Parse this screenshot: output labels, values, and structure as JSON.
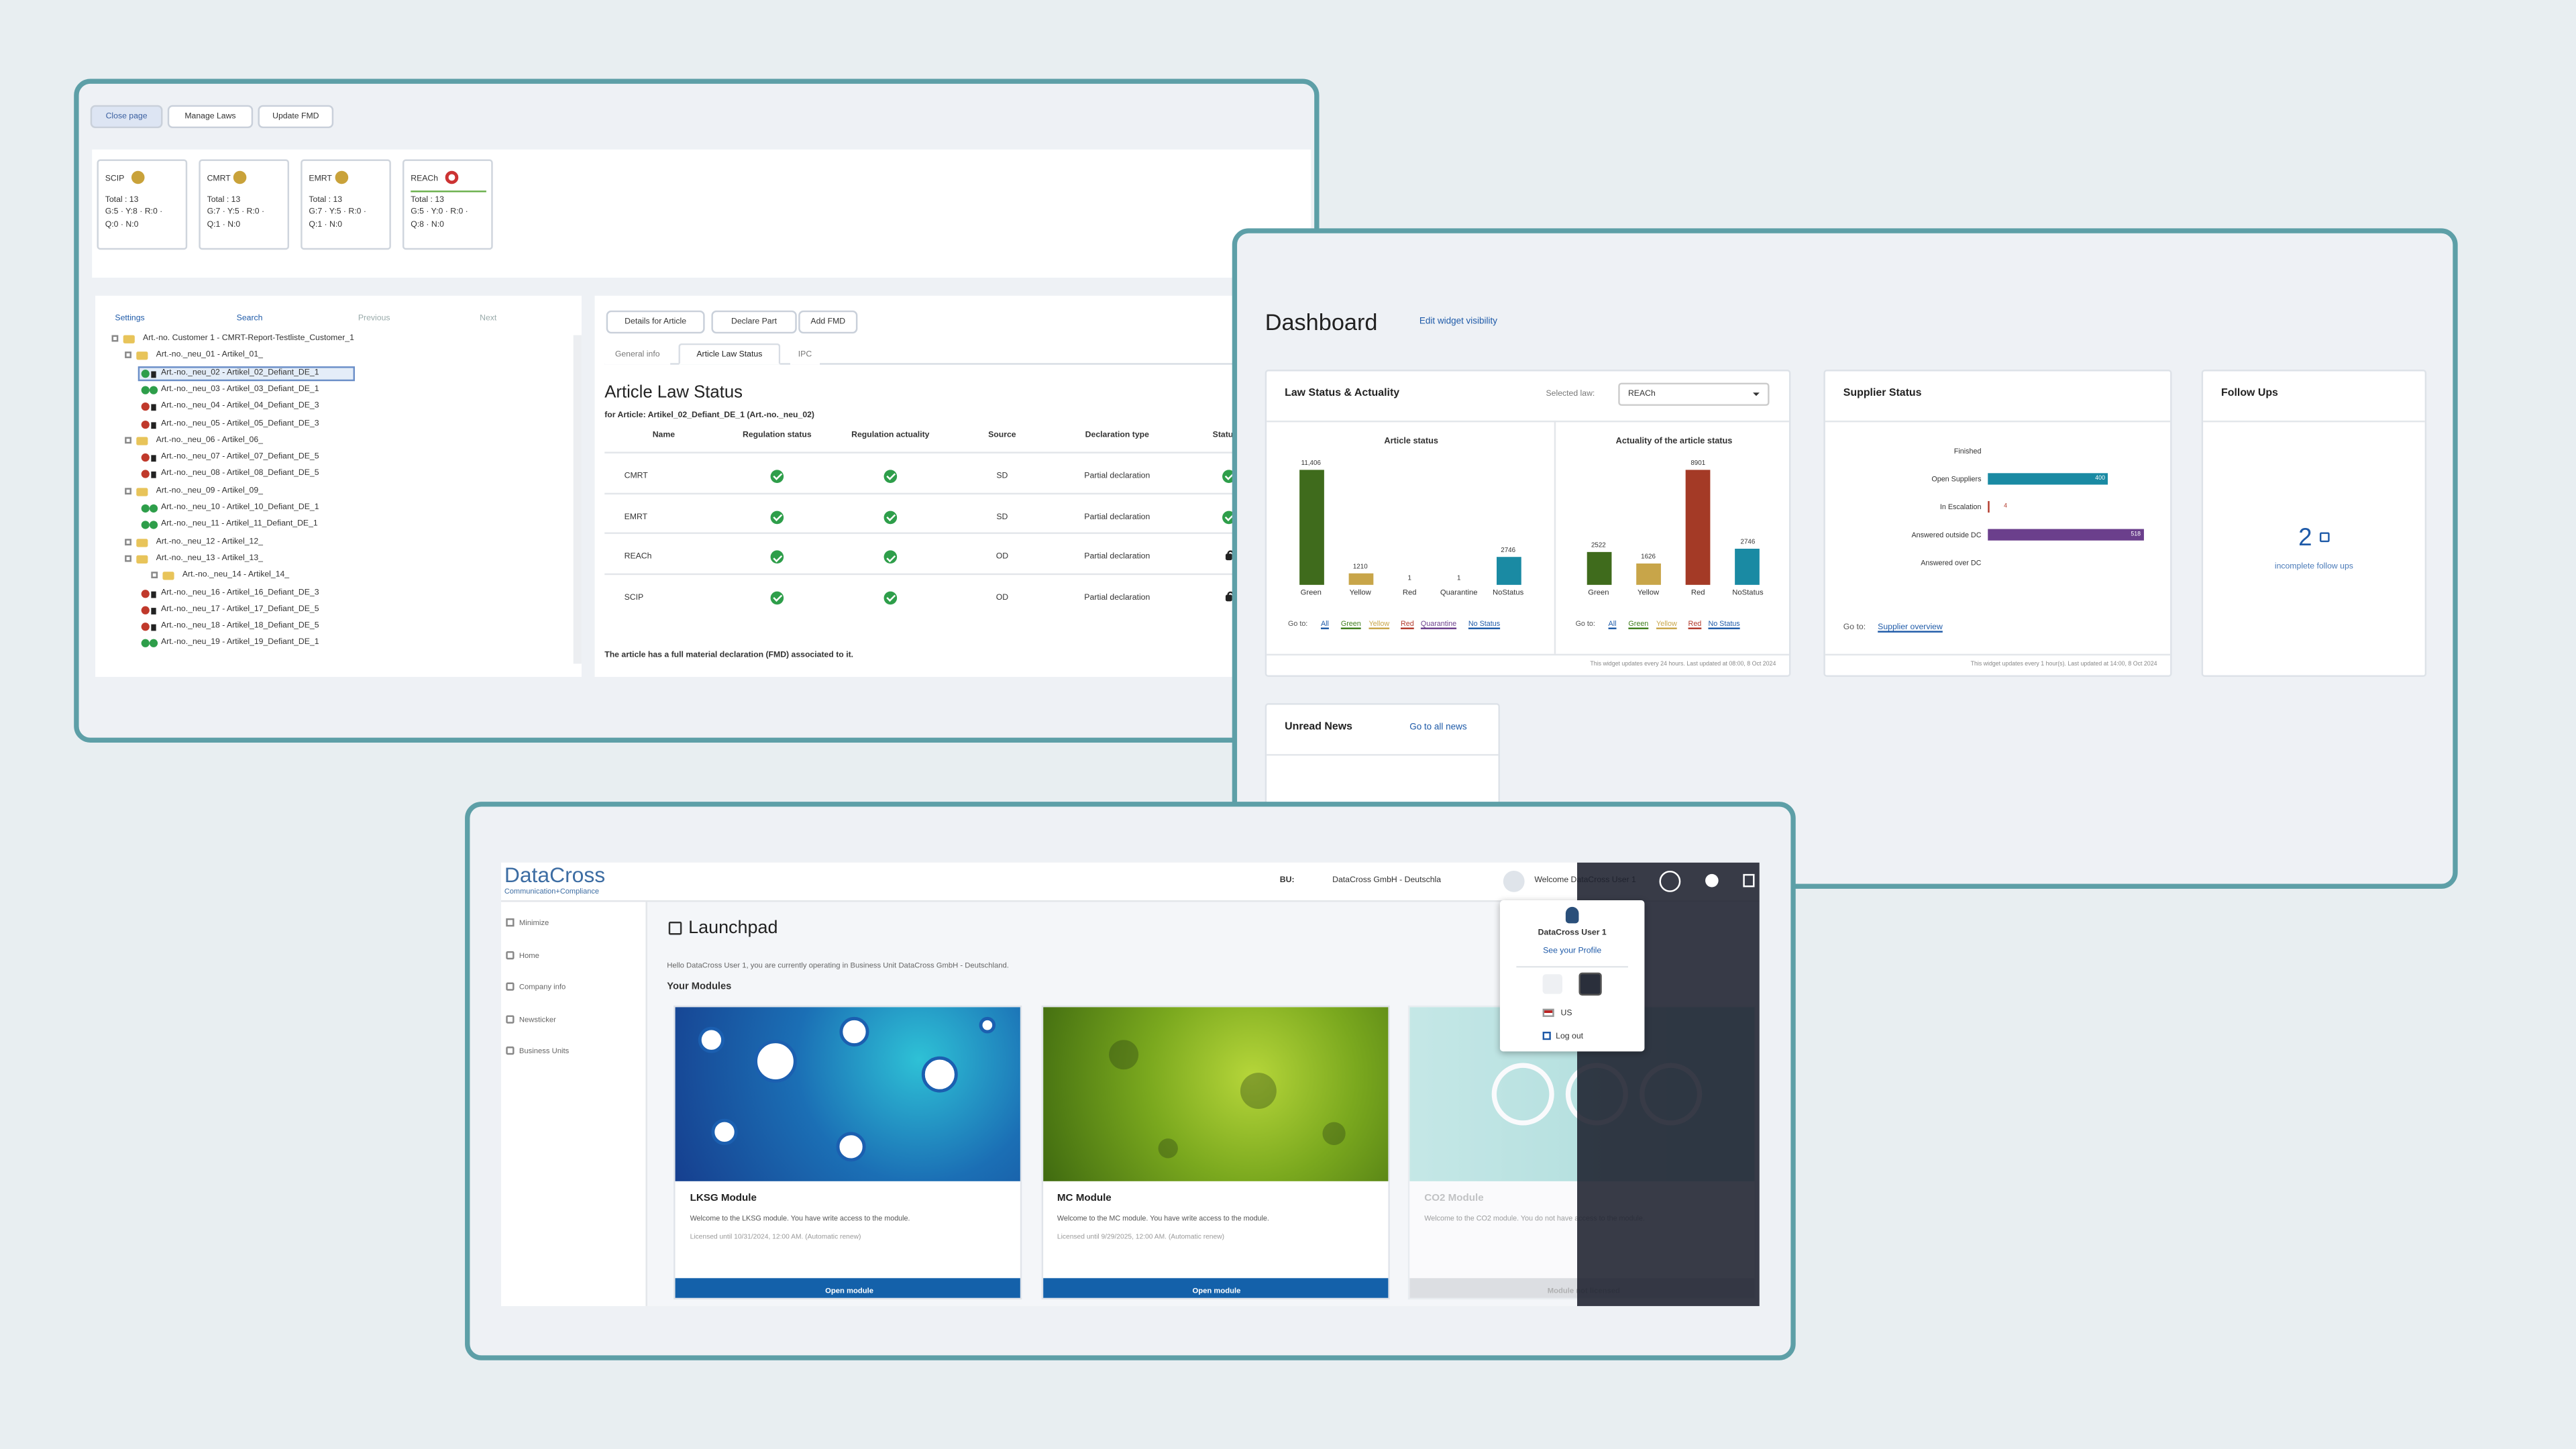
{
  "article_page": {
    "buttons": [
      "Close page",
      "Manage Laws",
      "Update FMD"
    ],
    "laws": [
      {
        "name": "SCIP",
        "total": "Total : 13",
        "line1": "G:5 · Y:8 · R:0 ·",
        "line2": "Q:0 · N:0"
      },
      {
        "name": "CMRT",
        "total": "Total : 13",
        "line1": "G:7 · Y:5 · R:0 ·",
        "line2": "Q:1 · N:0"
      },
      {
        "name": "EMRT",
        "total": "Total : 13",
        "line1": "G:7 · Y:5 · R:0 ·",
        "line2": "Q:1 · N:0"
      },
      {
        "name": "REACh",
        "total": "Total : 13",
        "line1": "G:5 · Y:0 · R:0 ·",
        "line2": "Q:8 · N:0"
      }
    ],
    "tree_toolbar": [
      "Settings",
      "Search",
      "Previous",
      "Next"
    ],
    "tree": [
      "Art.-no. Customer 1 - CMRT-Report-Testliste_Customer_1",
      "Art.-no._neu_01 - Artikel_01_",
      "Art.-no._neu_02 - Artikel_02_Defiant_DE_1",
      "Art.-no._neu_03 - Artikel_03_Defiant_DE_1",
      "Art.-no._neu_04 - Artikel_04_Defiant_DE_3",
      "Art.-no._neu_05 - Artikel_05_Defiant_DE_3",
      "Art.-no._neu_06 - Artikel_06_",
      "Art.-no._neu_07 - Artikel_07_Defiant_DE_5",
      "Art.-no._neu_08 - Artikel_08_Defiant_DE_5",
      "Art.-no._neu_09 - Artikel_09_",
      "Art.-no._neu_10 - Artikel_10_Defiant_DE_1",
      "Art.-no._neu_11 - Artikel_11_Defiant_DE_1",
      "Art.-no._neu_12 - Artikel_12_",
      "Art.-no._neu_13 - Artikel_13_",
      "Art.-no._neu_14 - Artikel_14_",
      "Art.-no._neu_16 - Artikel_16_Defiant_DE_3",
      "Art.-no._neu_17 - Artikel_17_Defiant_DE_5",
      "Art.-no._neu_18 - Artikel_18_Defiant_DE_5",
      "Art.-no._neu_19 - Artikel_19_Defiant_DE_1"
    ],
    "actions": [
      "Details for Article",
      "Declare Part",
      "Add FMD"
    ],
    "tabs": [
      "General info",
      "Article Law Status",
      "IPC"
    ],
    "title": "Article Law Status",
    "subtitle": "for Article: Artikel_02_Defiant_DE_1 (Art.-no._neu_02)",
    "table": {
      "headers": [
        "Name",
        "Regulation status",
        "Regulation actuality",
        "Source",
        "Declaration type",
        "Status o"
      ],
      "rows": [
        {
          "name": "CMRT",
          "source": "SD",
          "declaration_type": "Partial declaration"
        },
        {
          "name": "EMRT",
          "source": "SD",
          "declaration_type": "Partial declaration"
        },
        {
          "name": "REACh",
          "source": "OD",
          "declaration_type": "Partial declaration"
        },
        {
          "name": "SCIP",
          "source": "OD",
          "declaration_type": "Partial declaration"
        }
      ]
    },
    "footer": "The article has a full material declaration (FMD) associated to it."
  },
  "dashboard": {
    "title": "Dashboard",
    "edit": "Edit widget visibility",
    "law_widget": {
      "title": "Law Status & Actuality",
      "selected_label": "Selected law:",
      "selected": "REACh",
      "footer": "This widget updates every 24 hours. Last updated at 08:00, 8 Oct 2024",
      "goto": "Go to:"
    },
    "article_status": {
      "title": "Article status",
      "categories": [
        "Green",
        "Yellow",
        "Red",
        "Quarantine",
        "NoStatus"
      ],
      "values": [
        11406,
        1210,
        1,
        1,
        2746
      ],
      "value_labels": [
        "11,406",
        "1210",
        "1",
        "1",
        "2746"
      ],
      "colors": [
        "#3f6b1c",
        "#c8a549",
        "#a43a26",
        "#5c2f6e",
        "#1a8aa3"
      ],
      "links": [
        "All",
        "Green",
        "Yellow",
        "Red",
        "Quarantine",
        "No Status"
      ]
    },
    "actuality_status": {
      "title": "Actuality of the article status",
      "categories": [
        "Green",
        "Yellow",
        "Red",
        "NoStatus"
      ],
      "values": [
        2522,
        1626,
        8901,
        2746
      ],
      "colors": [
        "#3f6b1c",
        "#c8a549",
        "#a43a26",
        "#1a8aa3"
      ],
      "links": [
        "All",
        "Green",
        "Yellow",
        "Red",
        "No Status"
      ]
    },
    "supplier_widget": {
      "title": "Supplier Status",
      "categories": [
        "Finished",
        "Open Suppliers",
        "In Escalation",
        "Answered outside DC",
        "Answered over DC"
      ],
      "values": [
        0,
        400,
        4,
        518,
        0
      ],
      "colors": [
        "#1a8aa3",
        "#1a8aa3",
        "#b23a2c",
        "#6b3f8c",
        "#1a8aa3"
      ],
      "goto": "Go to:",
      "link": "Supplier overview",
      "footer": "This widget updates every 1 hour(s). Last updated at 14:00, 8 Oct 2024"
    },
    "followups": {
      "title": "Follow Ups",
      "count": 2,
      "label": "incomplete follow ups"
    },
    "news": {
      "title": "Unread News",
      "link": "Go to all news"
    }
  },
  "launchpad": {
    "logo": "DataCross",
    "logo_sub": "Communication+Compliance",
    "bu_label": "BU:",
    "bu": "DataCross GmbH - Deutschla",
    "welcome": "Welcome DataCross User 1",
    "sidebar": [
      "Minimize",
      "Home",
      "Company info",
      "Newsticker",
      "Business Units"
    ],
    "title": "Launchpad",
    "hello": "Hello DataCross User 1, you are currently operating in Business Unit DataCross GmbH - Deutschland.",
    "modules_heading": "Your Modules",
    "modules": [
      {
        "title": "LKSG Module",
        "desc": "Welcome to the LKSG module. You have write access to the module.",
        "license": "Licensed until 10/31/2024, 12:00 AM. (Automatic renew)",
        "button": "Open module"
      },
      {
        "title": "MC Module",
        "desc": "Welcome to the MC module. You have write access to the module.",
        "license": "Licensed until 9/29/2025, 12:00 AM. (Automatic renew)",
        "button": "Open module"
      },
      {
        "title": "CO2 Module",
        "desc": "Welcome to the CO2 module. You do not have access to the module.",
        "button": "Module not licensed"
      }
    ],
    "user_menu": {
      "name": "DataCross User 1",
      "profile": "See your Profile",
      "locale": "US",
      "logout": "Log out"
    }
  }
}
